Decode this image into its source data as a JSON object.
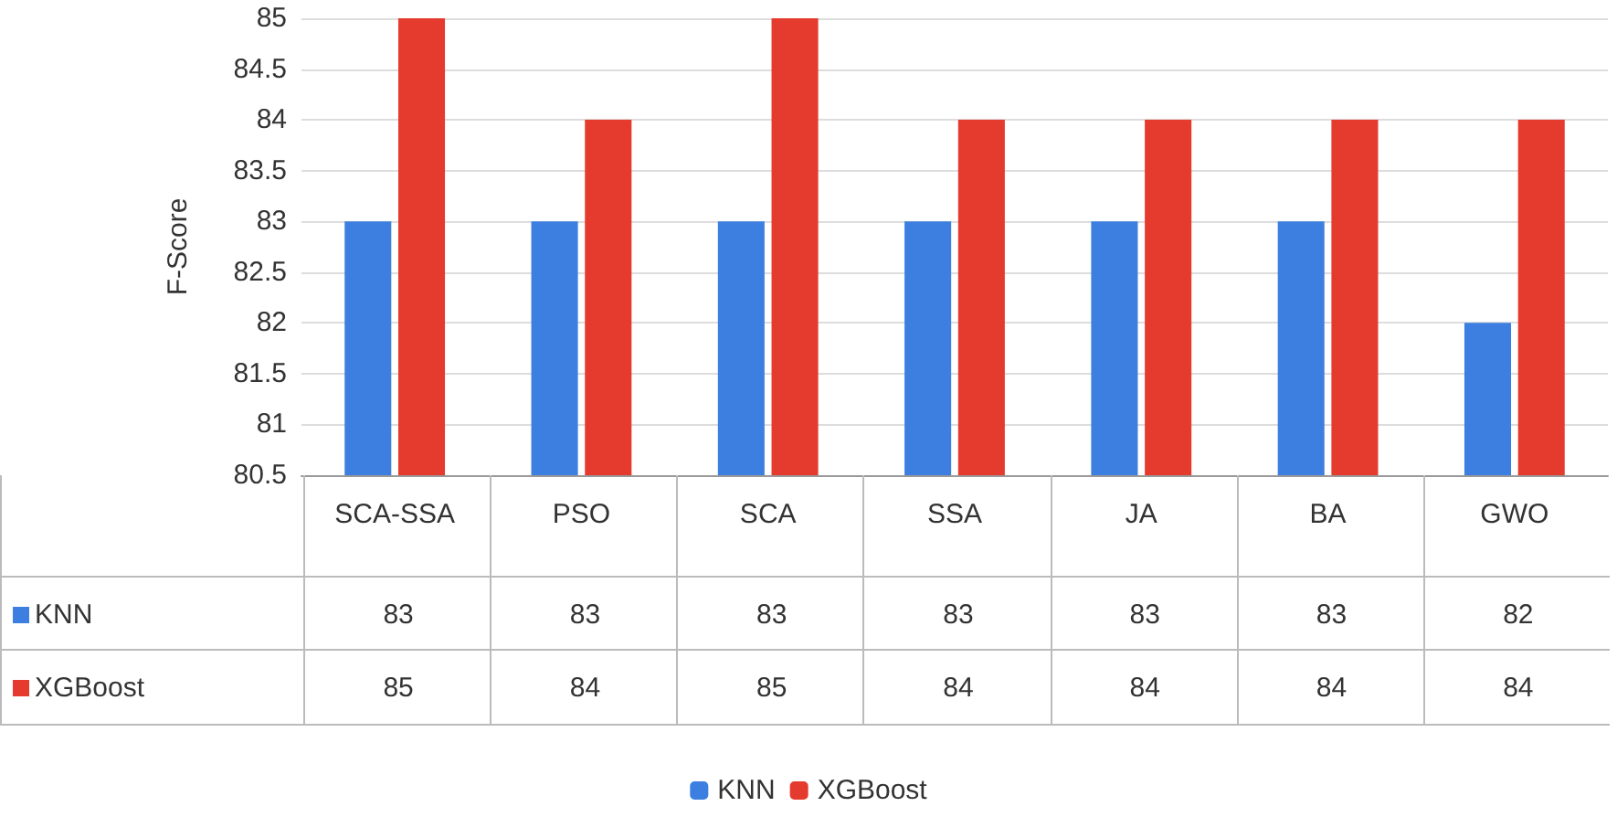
{
  "chart_data": {
    "type": "bar",
    "ylabel": "F-Score",
    "categories": [
      "SCA-SSA",
      "PSO",
      "SCA",
      "SSA",
      "JA",
      "BA",
      "GWO"
    ],
    "series": [
      {
        "name": "KNN",
        "color": "#3d7fe0",
        "values": [
          83,
          83,
          83,
          83,
          83,
          83,
          82
        ]
      },
      {
        "name": "XGBoost",
        "color": "#e53a2e",
        "values": [
          85,
          84,
          85,
          84,
          84,
          84,
          84
        ]
      }
    ],
    "ylim": [
      80.5,
      85
    ],
    "yticks": [
      80.5,
      81,
      81.5,
      82,
      82.5,
      83,
      83.5,
      84,
      84.5,
      85
    ],
    "grid": "y",
    "legend": "bottom",
    "data_labels": true
  }
}
